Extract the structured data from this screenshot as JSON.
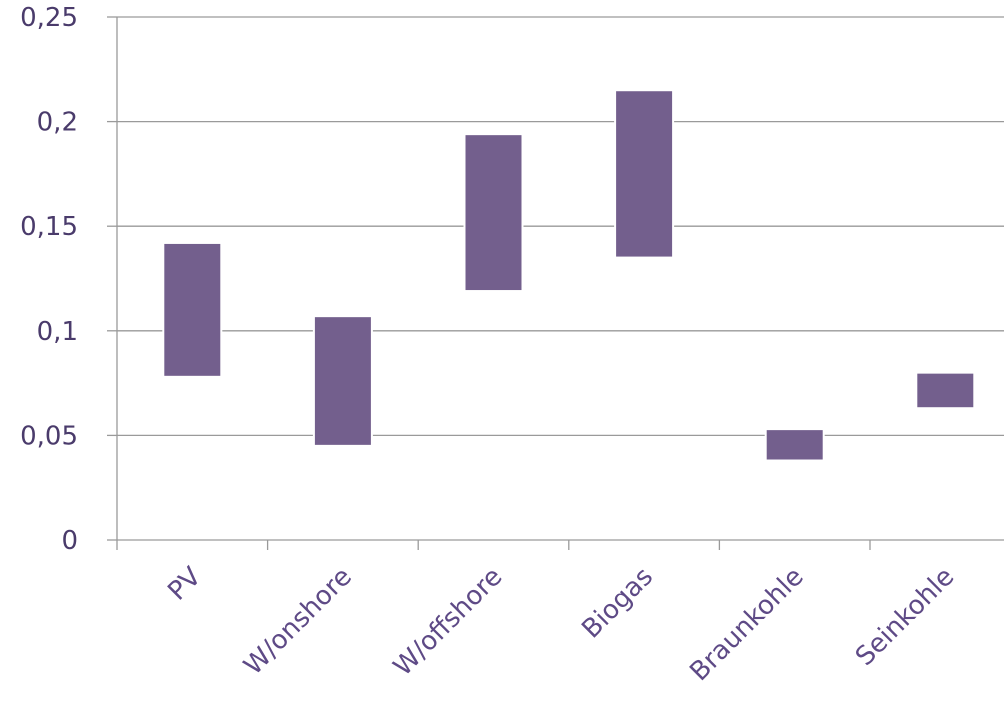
{
  "chart_data": {
    "type": "bar",
    "subtype": "floating-range",
    "title": "",
    "xlabel": "",
    "ylabel": "",
    "categories": [
      "PV",
      "W/onshore",
      "W/offshore",
      "Biogas",
      "Braunkohle",
      "Seinkohle"
    ],
    "series": [
      {
        "ranges": [
          [
            0.078,
            0.142
          ],
          [
            0.045,
            0.107
          ],
          [
            0.119,
            0.194
          ],
          [
            0.135,
            0.215
          ],
          [
            0.038,
            0.053
          ],
          [
            0.063,
            0.08
          ]
        ]
      }
    ],
    "yticks": [
      "0",
      "0,05",
      "0,1",
      "0,15",
      "0,2",
      "0,25"
    ],
    "ylim": [
      0,
      0.25
    ],
    "grid": true,
    "legend": "none",
    "colors": {
      "bar": "#735f8d",
      "grid": "#9a9a9a",
      "text": "#4a3b6b"
    }
  }
}
